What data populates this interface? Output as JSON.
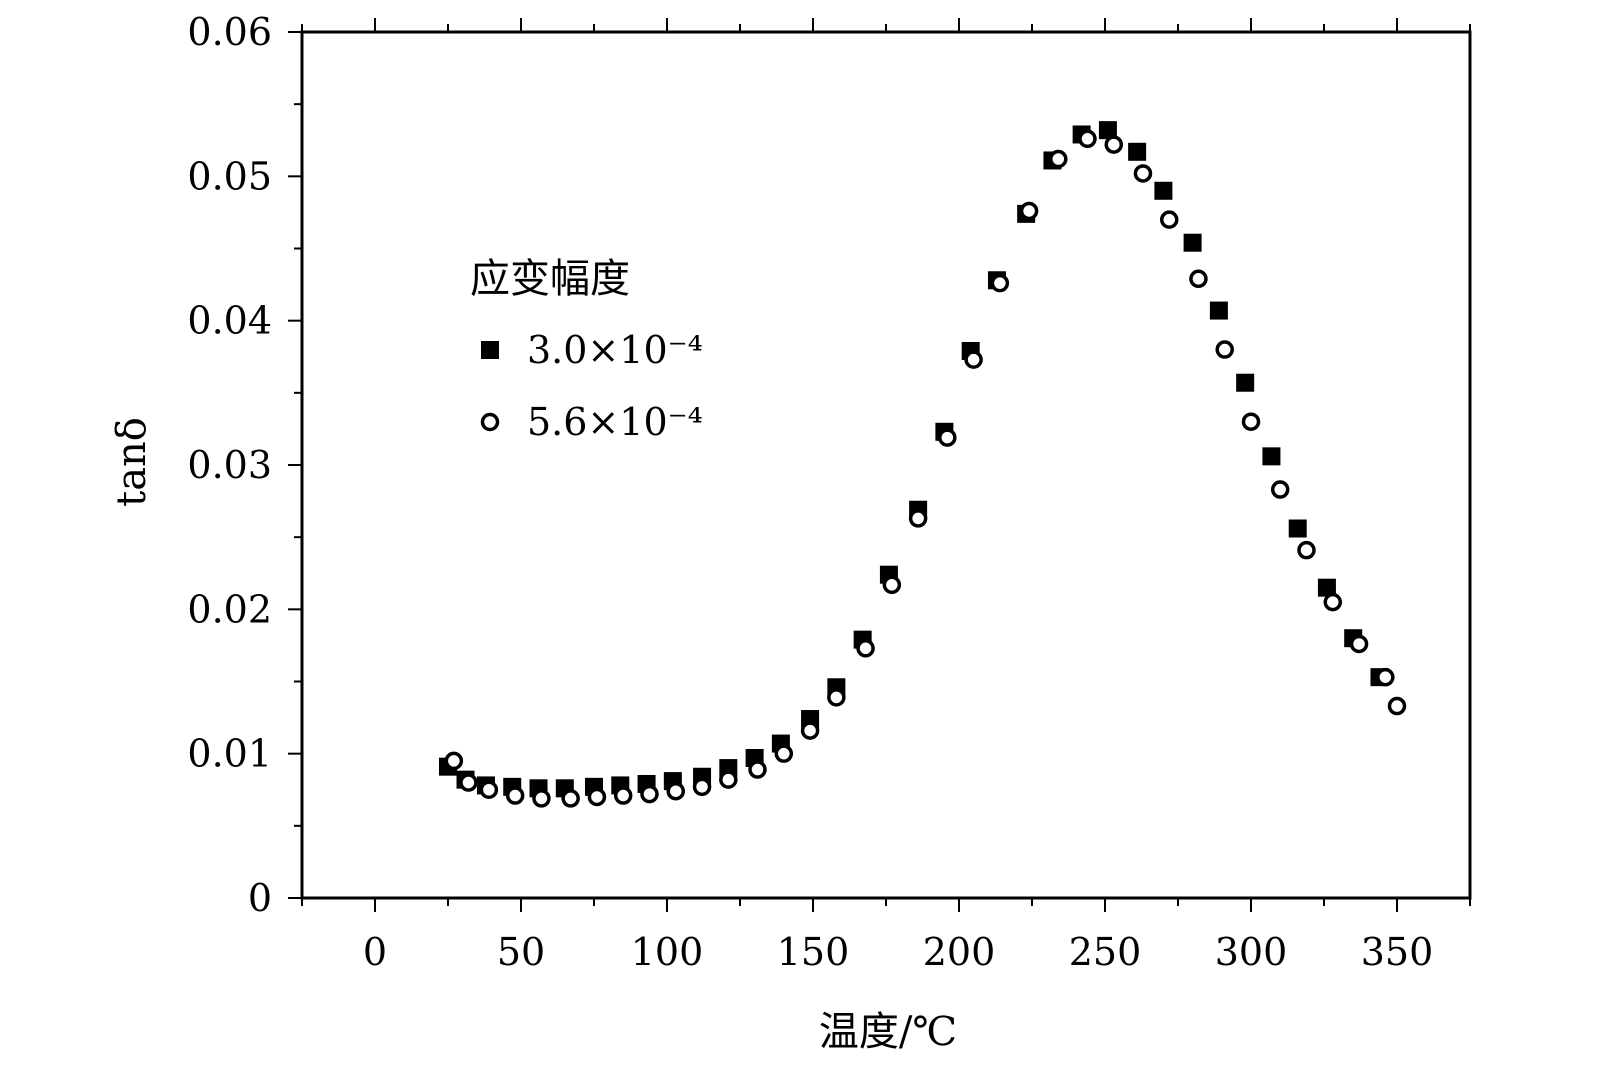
{
  "chart_data": {
    "type": "scatter",
    "xlabel": "温度/℃",
    "ylabel": "tanδ",
    "xlim": [
      -25,
      375
    ],
    "ylim": [
      0,
      0.06
    ],
    "xticks": [
      0,
      50,
      100,
      150,
      200,
      250,
      300,
      350
    ],
    "yticks": [
      0,
      0.01,
      0.02,
      0.03,
      0.04,
      0.05,
      0.06
    ],
    "xtick_labels": [
      "0",
      "50",
      "100",
      "150",
      "200",
      "250",
      "300",
      "350"
    ],
    "ytick_labels": [
      "0",
      "0.01",
      "0.02",
      "0.03",
      "0.04",
      "0.05",
      "0.06"
    ],
    "grid": false,
    "legend": {
      "title": "应变幅度",
      "placement": "left-center",
      "entries": [
        "3.0×10⁻⁴",
        "5.6×10⁻⁴"
      ]
    },
    "series": [
      {
        "name": "3.0×10⁻⁴",
        "marker": "filled-square",
        "color": "#000000",
        "x": [
          25,
          31,
          38,
          47,
          56,
          65,
          75,
          84,
          93,
          102,
          112,
          121,
          130,
          139,
          149,
          158,
          167,
          176,
          186,
          195,
          204,
          213,
          223,
          232,
          242,
          251,
          261,
          270,
          280,
          289,
          298,
          307,
          316,
          326,
          335,
          344
        ],
        "y": [
          0.0091,
          0.0082,
          0.0078,
          0.0077,
          0.0076,
          0.0076,
          0.0077,
          0.0078,
          0.0079,
          0.0081,
          0.0084,
          0.009,
          0.0097,
          0.0107,
          0.0124,
          0.0146,
          0.0179,
          0.0224,
          0.0269,
          0.0323,
          0.0379,
          0.0428,
          0.0474,
          0.0511,
          0.0529,
          0.0532,
          0.0517,
          0.049,
          0.0454,
          0.0407,
          0.0357,
          0.0306,
          0.0256,
          0.0215,
          0.018,
          0.0153
        ]
      },
      {
        "name": "5.6×10⁻⁴",
        "marker": "open-circle",
        "color": "#000000",
        "x": [
          27,
          32,
          39,
          48,
          57,
          67,
          76,
          85,
          94,
          103,
          112,
          121,
          131,
          140,
          149,
          158,
          168,
          177,
          186,
          196,
          205,
          214,
          224,
          234,
          244,
          253,
          263,
          272,
          282,
          291,
          300,
          310,
          319,
          328,
          337,
          346,
          350
        ],
        "y": [
          0.0095,
          0.008,
          0.0075,
          0.0071,
          0.0069,
          0.0069,
          0.007,
          0.0071,
          0.0072,
          0.0074,
          0.0077,
          0.0082,
          0.0089,
          0.01,
          0.0116,
          0.0139,
          0.0173,
          0.0217,
          0.0263,
          0.0319,
          0.0373,
          0.0426,
          0.0476,
          0.0512,
          0.0526,
          0.0522,
          0.0502,
          0.047,
          0.0429,
          0.038,
          0.033,
          0.0283,
          0.0241,
          0.0205,
          0.0176,
          0.0153,
          0.0133
        ]
      }
    ]
  }
}
